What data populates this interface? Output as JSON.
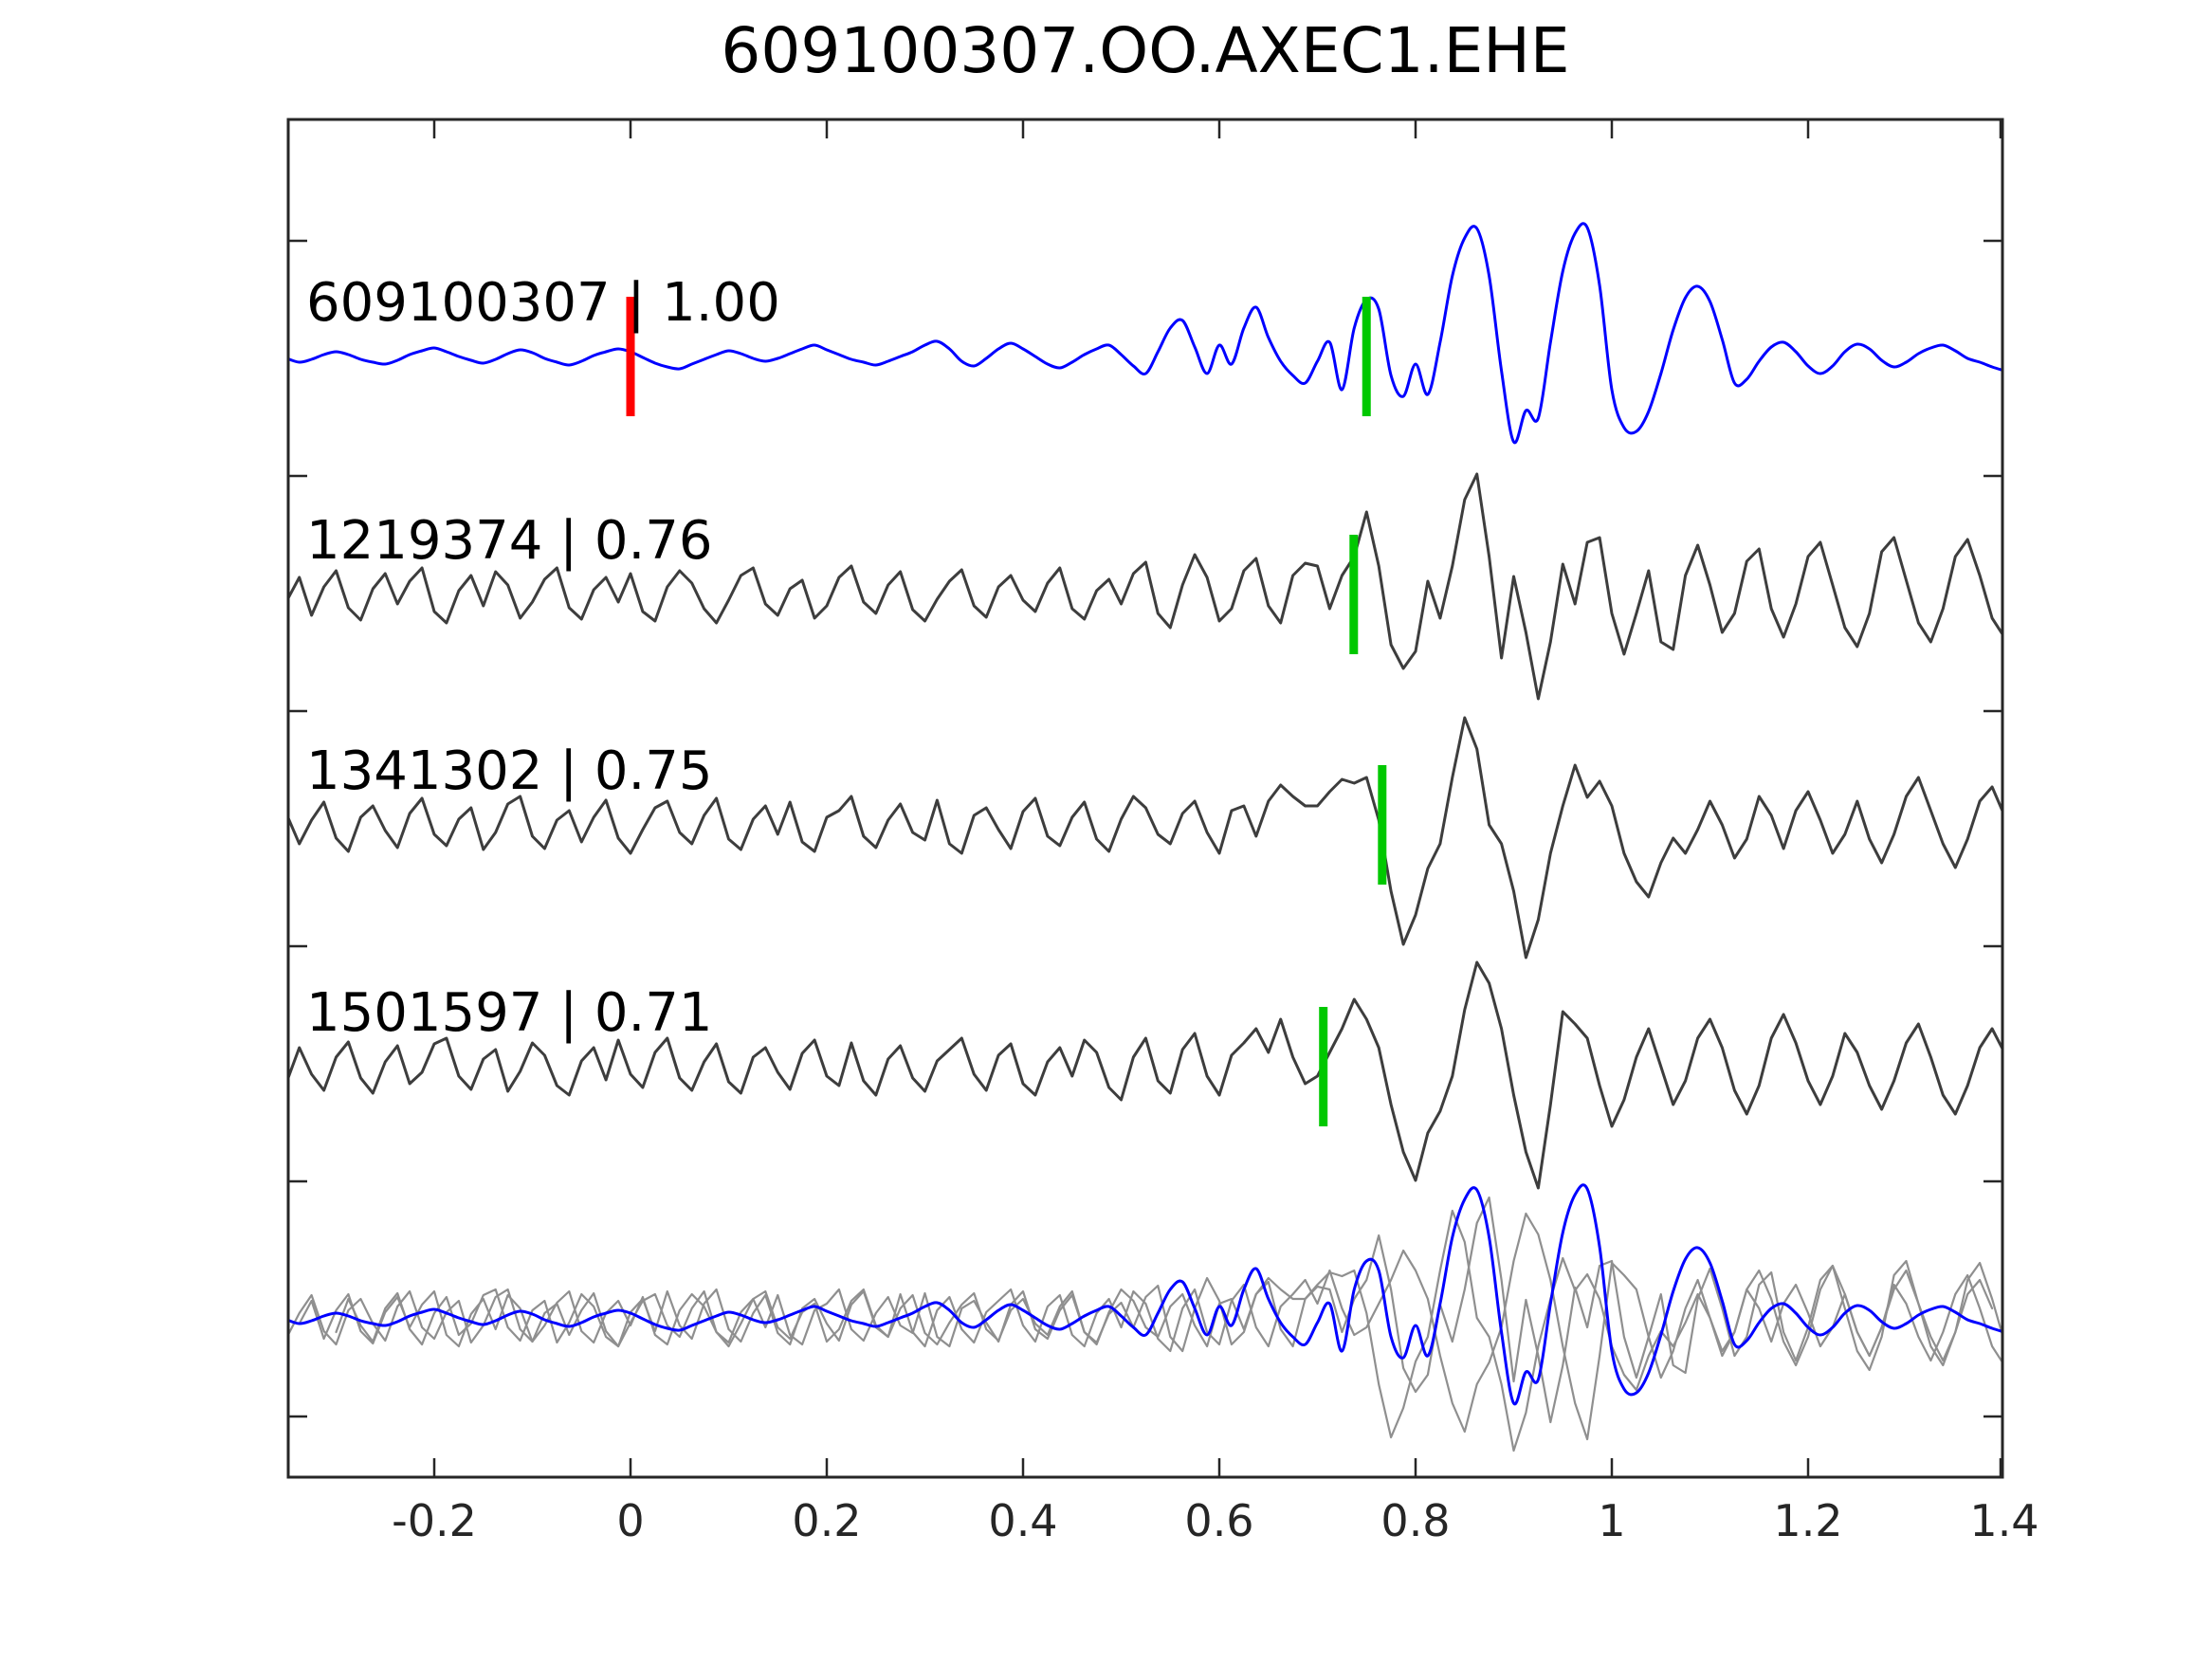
{
  "title": "609100307.OO.AXEC1.EHE",
  "colors": {
    "template": "#0000ff",
    "match": "#3d3d3d",
    "overlay_match": "#8f8f8f",
    "marker_template": "#ff0000",
    "marker_detection": "#00c800",
    "axis": "#262626",
    "text": "#000000",
    "background": "#ffffff"
  },
  "chart_data": {
    "type": "line",
    "title": "609100307.OO.AXEC1.EHE",
    "xlabel": "",
    "ylabel": "",
    "grid": false,
    "legend": "none",
    "xlim": [
      -0.35,
      1.4
    ],
    "x_start": -0.35,
    "dx": 0.0125,
    "y_unit": "normalized amplitude (relative px)",
    "xticks": {
      "values": [
        -0.2,
        0,
        0.2,
        0.4,
        0.6,
        0.8,
        1.0,
        1.2,
        1.4
      ],
      "labels": [
        "-0.2",
        "0",
        "0.2",
        "0.4",
        "0.6",
        "0.8",
        "1",
        "1.2",
        "1.4"
      ]
    },
    "traces": [
      {
        "id": "609100307",
        "correlation": "1.00",
        "label": "609100307 | 1.00",
        "style": "template",
        "smooth": true,
        "markers": [
          {
            "x": 0.0,
            "type": "template-origin",
            "color": "marker_template"
          },
          {
            "x": 0.75,
            "type": "pick",
            "color": "marker_detection"
          }
        ],
        "values": [
          -2,
          -6,
          -3,
          2,
          5,
          2,
          -3,
          -6,
          -8,
          -4,
          2,
          6,
          9,
          5,
          0,
          -4,
          -7,
          -3,
          3,
          7,
          4,
          -2,
          -6,
          -9,
          -5,
          1,
          5,
          8,
          5,
          -1,
          -7,
          -11,
          -13,
          -8,
          -3,
          2,
          6,
          3,
          -2,
          -5,
          -2,
          3,
          8,
          12,
          7,
          2,
          -3,
          -6,
          -9,
          -5,
          0,
          5,
          12,
          16,
          8,
          -5,
          -10,
          -2,
          8,
          14,
          8,
          0,
          -8,
          -12,
          -6,
          2,
          8,
          12,
          2,
          -10,
          -18,
          5,
          30,
          38,
          10,
          -18,
          12,
          -8,
          30,
          52,
          20,
          -5,
          -20,
          -28,
          -5,
          15,
          -35,
          30,
          60,
          50,
          -20,
          -42,
          -8,
          -40,
          15,
          85,
          125,
          135,
          85,
          -15,
          -90,
          -57,
          -65,
          15,
          90,
          130,
          136,
          75,
          -35,
          -75,
          -79,
          -58,
          -18,
          28,
          62,
          74,
          58,
          18,
          -28,
          -24,
          -5,
          10,
          15,
          5,
          -10,
          -18,
          -10,
          5,
          13,
          8,
          -4,
          -11,
          -6,
          3,
          9,
          12,
          6,
          -2,
          -6,
          -11,
          -15
        ]
      },
      {
        "id": "1219374",
        "correlation": "0.76",
        "label": "1219374 | 0.76",
        "style": "match",
        "smooth": false,
        "markers": [
          {
            "x": 0.737,
            "type": "pick",
            "color": "marker_detection"
          }
        ],
        "values": [
          -6,
          18,
          -22,
          8,
          25,
          -14,
          -27,
          6,
          22,
          -10,
          14,
          28,
          -18,
          -30,
          4,
          20,
          -12,
          24,
          10,
          -25,
          -8,
          16,
          28,
          -14,
          -26,
          5,
          18,
          -8,
          22,
          -18,
          -28,
          8,
          25,
          12,
          -15,
          -30,
          -6,
          20,
          28,
          -10,
          -22,
          6,
          15,
          -25,
          -12,
          18,
          30,
          -8,
          -20,
          10,
          24,
          -16,
          -28,
          -5,
          14,
          26,
          -12,
          -24,
          8,
          20,
          -6,
          -18,
          12,
          28,
          -15,
          -26,
          4,
          16,
          -10,
          22,
          34,
          -20,
          -35,
          10,
          42,
          18,
          -28,
          -15,
          25,
          38,
          -12,
          -30,
          20,
          33,
          30,
          -15,
          20,
          40,
          87,
          30,
          -53,
          -78,
          -60,
          14,
          -25,
          30,
          100,
          127,
          40,
          -67,
          19,
          -40,
          -110,
          -50,
          32,
          -10,
          55,
          60,
          -20,
          -63,
          -20,
          25,
          -50,
          -58,
          20,
          52,
          10,
          -40,
          -20,
          35,
          48,
          -15,
          -45,
          -10,
          40,
          55,
          10,
          -35,
          -55,
          -20,
          45,
          60,
          15,
          -30,
          -50,
          -15,
          40,
          58,
          20,
          -25,
          -45
        ]
      },
      {
        "id": "1341302",
        "correlation": "0.75",
        "label": "1341302 | 0.75",
        "style": "match",
        "smooth": false,
        "markers": [
          {
            "x": 0.766,
            "type": "pick",
            "color": "marker_detection"
          }
        ],
        "values": [
          10,
          -20,
          5,
          24,
          -14,
          -28,
          8,
          20,
          -6,
          -24,
          12,
          28,
          -10,
          -22,
          6,
          18,
          -26,
          -8,
          22,
          30,
          -12,
          -25,
          5,
          15,
          -18,
          8,
          26,
          -14,
          -30,
          -5,
          18,
          25,
          -8,
          -20,
          10,
          28,
          -15,
          -26,
          6,
          20,
          -10,
          24,
          -18,
          -28,
          8,
          15,
          30,
          -12,
          -24,
          5,
          22,
          -8,
          -16,
          26,
          -20,
          -30,
          10,
          18,
          -5,
          -25,
          14,
          28,
          -12,
          -22,
          8,
          24,
          -15,
          -28,
          6,
          30,
          18,
          -10,
          -20,
          12,
          25,
          -8,
          -30,
          15,
          20,
          -12,
          25,
          42,
          30,
          20,
          20,
          35,
          48,
          44,
          50,
          5,
          -70,
          -126,
          -95,
          -46,
          -20,
          50,
          113,
          80,
          0,
          -20,
          -70,
          -140,
          -100,
          -30,
          20,
          63,
          29,
          46,
          20,
          -30,
          -60,
          -76,
          -40,
          -14,
          -30,
          -5,
          25,
          0,
          -35,
          -15,
          30,
          10,
          -25,
          15,
          35,
          5,
          -30,
          -10,
          25,
          -15,
          -40,
          -10,
          30,
          50,
          15,
          -20,
          -45,
          -15,
          25,
          40,
          10
        ]
      },
      {
        "id": "1501597",
        "correlation": "0.71",
        "label": "1501597 | 0.71",
        "style": "match",
        "smooth": false,
        "markers": [
          {
            "x": 0.706,
            "type": "pick",
            "color": "marker_detection"
          }
        ],
        "values": [
          -15,
          20,
          -8,
          -25,
          10,
          26,
          -12,
          -28,
          5,
          22,
          -18,
          -6,
          24,
          30,
          -10,
          -24,
          8,
          18,
          -26,
          -5,
          25,
          12,
          -20,
          -30,
          6,
          20,
          -14,
          28,
          -8,
          -22,
          15,
          30,
          -12,
          -25,
          5,
          24,
          -16,
          -28,
          10,
          20,
          -6,
          -24,
          14,
          28,
          -10,
          -20,
          25,
          -15,
          -30,
          8,
          22,
          -12,
          -26,
          6,
          18,
          30,
          -8,
          -25,
          12,
          24,
          -18,
          -30,
          5,
          20,
          -10,
          28,
          15,
          -22,
          -35,
          10,
          30,
          -15,
          -28,
          18,
          35,
          -10,
          -30,
          12,
          25,
          40,
          15,
          50,
          10,
          -18,
          -10,
          15,
          40,
          71,
          50,
          20,
          -40,
          -90,
          -120,
          -70,
          -47,
          -10,
          60,
          110,
          88,
          40,
          -30,
          -90,
          -128,
          -40,
          58,
          45,
          30,
          -20,
          -63,
          -35,
          10,
          40,
          0,
          -40,
          -15,
          30,
          50,
          20,
          -25,
          -50,
          -20,
          30,
          55,
          25,
          -15,
          -40,
          -10,
          35,
          15,
          -20,
          -45,
          -15,
          25,
          45,
          10,
          -30,
          -50,
          -20,
          20,
          40,
          15
        ]
      }
    ],
    "overlay": {
      "description": "all matched traces shifted into alignment and superimposed with the template",
      "components": [
        {
          "trace": 1,
          "shift_x": 0.0125
        },
        {
          "trace": 2,
          "shift_x": -0.0125
        },
        {
          "trace": 3,
          "shift_x": 0.05
        },
        {
          "trace": 0,
          "shift_x": 0.0
        }
      ]
    }
  }
}
